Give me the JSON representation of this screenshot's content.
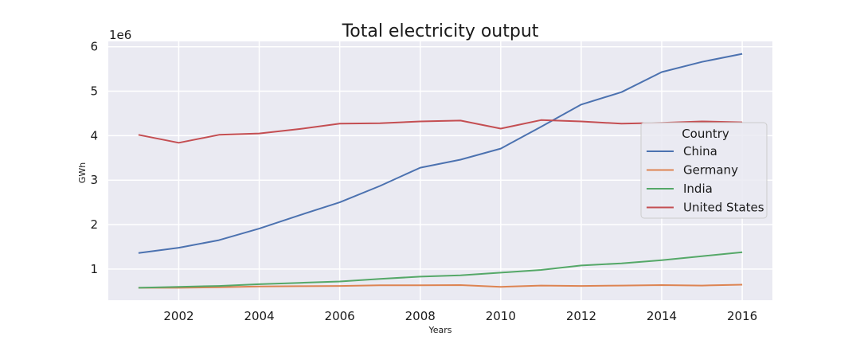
{
  "chart_data": {
    "type": "line",
    "title": "Total electricity output",
    "xlabel": "Years",
    "ylabel": "GWh",
    "y_scale_label": "1e6",
    "xlim": [
      2000.25,
      2016.75
    ],
    "ylim": [
      300000,
      6120000
    ],
    "x_ticks": [
      2002,
      2004,
      2006,
      2008,
      2010,
      2012,
      2014,
      2016
    ],
    "y_ticks": [
      1000000,
      2000000,
      3000000,
      4000000,
      5000000,
      6000000
    ],
    "y_tick_labels": [
      "1",
      "2",
      "3",
      "4",
      "5",
      "6"
    ],
    "grid": true,
    "legend": {
      "title": "Country",
      "placement": "right"
    },
    "x": [
      2001,
      2002,
      2003,
      2004,
      2005,
      2006,
      2007,
      2008,
      2009,
      2010,
      2011,
      2012,
      2013,
      2014,
      2015,
      2016
    ],
    "series": [
      {
        "name": "China",
        "color": "#4c72b0",
        "values": [
          1360000,
          1480000,
          1650000,
          1910000,
          2210000,
          2500000,
          2870000,
          3280000,
          3460000,
          3710000,
          4200000,
          4700000,
          4980000,
          5430000,
          5660000,
          5840000
        ]
      },
      {
        "name": "Germany",
        "color": "#dd8452",
        "values": [
          580000,
          580000,
          590000,
          610000,
          615000,
          620000,
          635000,
          637000,
          640000,
          600000,
          630000,
          620000,
          630000,
          640000,
          630000,
          650000
        ]
      },
      {
        "name": "India",
        "color": "#55a868",
        "values": [
          580000,
          600000,
          620000,
          660000,
          690000,
          720000,
          780000,
          830000,
          860000,
          920000,
          980000,
          1080000,
          1130000,
          1200000,
          1290000,
          1380000
        ]
      },
      {
        "name": "United States",
        "color": "#c44e52",
        "values": [
          4020000,
          3840000,
          4020000,
          4050000,
          4150000,
          4270000,
          4280000,
          4320000,
          4340000,
          4160000,
          4350000,
          4320000,
          4270000,
          4290000,
          4320000,
          4300000
        ]
      }
    ]
  }
}
